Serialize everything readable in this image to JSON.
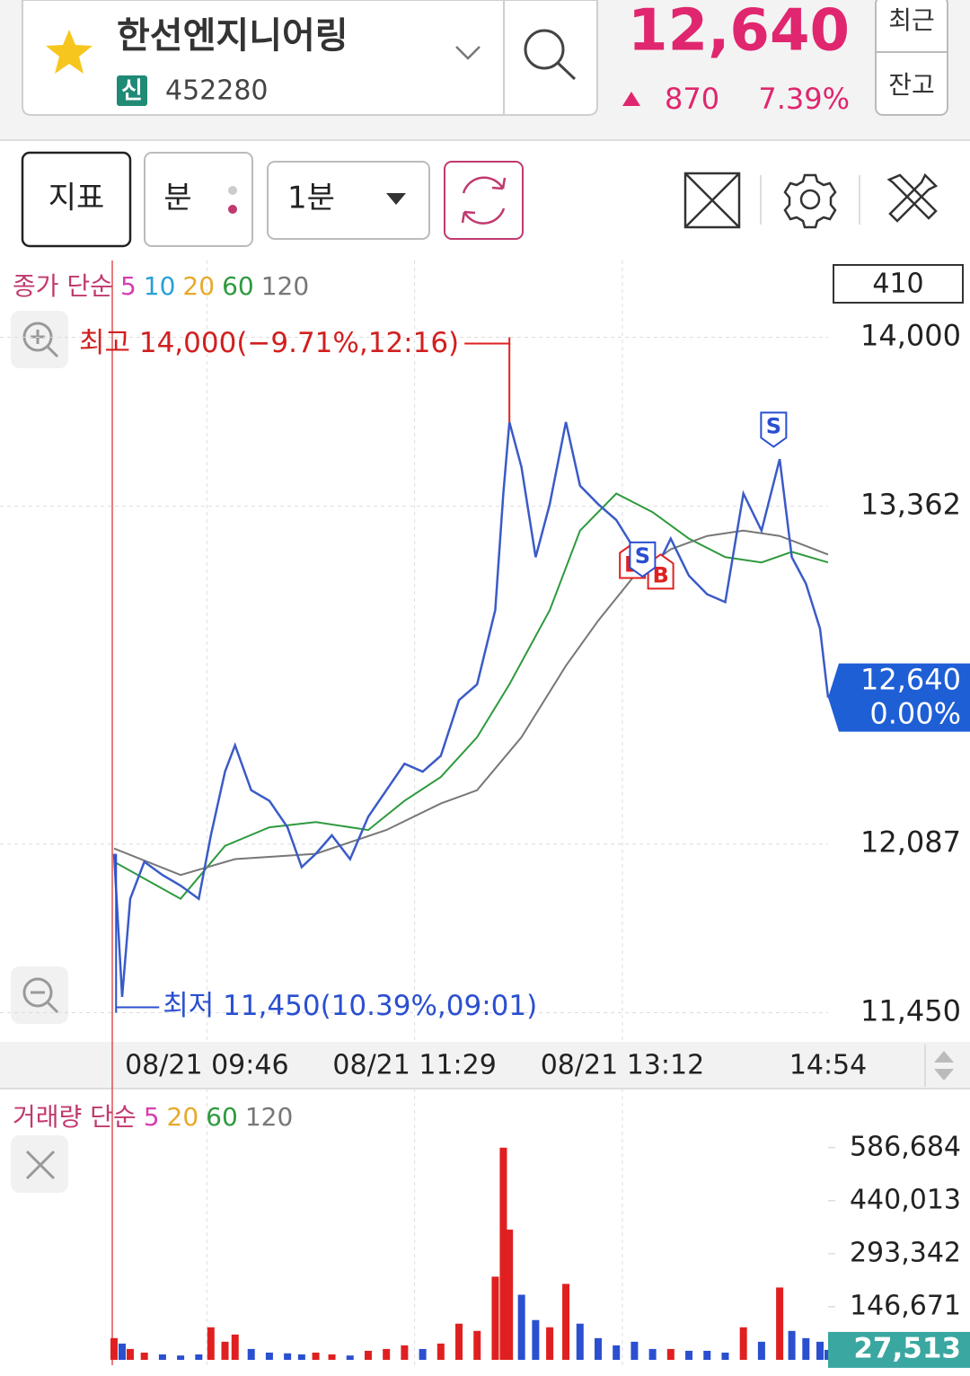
{
  "header": {
    "stock_name": "한선엔지니어링",
    "badge": "신",
    "code": "452280",
    "price": "12,640",
    "change": "870",
    "change_pct": "7.39%",
    "recent": "최근",
    "balance": "잔고"
  },
  "toolbar": {
    "indicator": "지표",
    "period_unit": "분",
    "interval": "1분"
  },
  "chart_data": [
    {
      "type": "line",
      "legend_title": "종가 단순",
      "count_box": "410",
      "x": [
        "09:00",
        "09:04",
        "09:08",
        "09:15",
        "09:24",
        "09:33",
        "09:42",
        "09:48",
        "09:55",
        "10:00",
        "10:08",
        "10:17",
        "10:26",
        "10:33",
        "10:40",
        "10:48",
        "10:57",
        "11:06",
        "11:15",
        "11:24",
        "11:33",
        "11:42",
        "11:51",
        "12:00",
        "12:09",
        "12:13",
        "12:16",
        "12:22",
        "12:29",
        "12:36",
        "12:44",
        "12:51",
        "13:00",
        "13:09",
        "13:18",
        "13:27",
        "13:36",
        "13:45",
        "13:54",
        "14:03",
        "14:12",
        "14:21",
        "14:30",
        "14:36",
        "14:43",
        "14:50",
        "14:54"
      ],
      "values": [
        12050,
        11510,
        11880,
        12020,
        11970,
        11930,
        11880,
        12120,
        12360,
        12460,
        12290,
        12250,
        12150,
        12000,
        12050,
        12120,
        12030,
        12190,
        12290,
        12390,
        12360,
        12420,
        12630,
        12690,
        12970,
        13410,
        13680,
        13510,
        13170,
        13370,
        13680,
        13440,
        13370,
        13310,
        13200,
        13100,
        13240,
        13100,
        13030,
        13000,
        13410,
        13270,
        13540,
        13170,
        13070,
        12900,
        12640
      ],
      "color": "#3a5bc7",
      "series": [
        {
          "name": "5",
          "color": "#d63fb0"
        },
        {
          "name": "10",
          "color": "#2aa0d8"
        },
        {
          "name": "20",
          "color": "#e8a92a"
        },
        {
          "name": "60",
          "color": "#2e9a3e",
          "x": [
            "09:00",
            "09:33",
            "09:55",
            "10:17",
            "10:40",
            "11:06",
            "11:24",
            "11:42",
            "12:00",
            "12:16",
            "12:36",
            "12:51",
            "13:09",
            "13:27",
            "13:45",
            "14:03",
            "14:21",
            "14:36",
            "14:54"
          ],
          "values": [
            12020,
            11880,
            12080,
            12150,
            12170,
            12140,
            12250,
            12340,
            12490,
            12690,
            12970,
            13270,
            13410,
            13340,
            13240,
            13170,
            13150,
            13190,
            13150
          ]
        },
        {
          "name": "120",
          "color": "#777777",
          "x": [
            "09:00",
            "09:33",
            "10:00",
            "10:40",
            "11:15",
            "11:42",
            "12:00",
            "12:22",
            "12:44",
            "13:00",
            "13:18",
            "13:36",
            "13:54",
            "14:12",
            "14:30",
            "14:54"
          ],
          "values": [
            12070,
            11970,
            12030,
            12050,
            12140,
            12240,
            12290,
            12490,
            12760,
            12930,
            13100,
            13200,
            13250,
            13270,
            13250,
            13180
          ]
        }
      ],
      "ylim": [
        11340,
        14290
      ],
      "yticks": [
        {
          "value": 14000,
          "label": "14,000"
        },
        {
          "value": 13362,
          "label": "13,362"
        },
        {
          "value": 12087,
          "label": "12,087"
        },
        {
          "value": 11450,
          "label": "11,450"
        }
      ],
      "xlim": [
        "09:00",
        "14:54"
      ],
      "xticks": [
        {
          "value": "09:46",
          "label": "08/21 09:46"
        },
        {
          "value": "11:29",
          "label": "08/21 11:29"
        },
        {
          "value": "13:12",
          "label": "08/21 13:12"
        },
        "14:54"
      ],
      "grid": true,
      "high": {
        "label": "최고 14,000(−9.71%,12:16)",
        "value": 14000,
        "x": "12:16"
      },
      "low": {
        "label": "최저 11,450(10.39%,09:01)",
        "value": 11450,
        "x": "09:01"
      },
      "current": {
        "value": 12640,
        "label": "12,640",
        "change": "0.00%"
      },
      "trade_marks": [
        {
          "label": "S",
          "x": "14:27",
          "value": 13580
        },
        {
          "label": "B",
          "x": "13:17",
          "value": 13220
        },
        {
          "label": "B",
          "x": "13:31",
          "value": 13180
        },
        {
          "label": "S",
          "x": "13:22",
          "value": 13090
        }
      ]
    },
    {
      "type": "bar",
      "legend_title": "거래량 단순",
      "series": [
        {
          "name": "5",
          "color": "#d63fb0"
        },
        {
          "name": "20",
          "color": "#e8a92a"
        },
        {
          "name": "60",
          "color": "#2e9a3e"
        },
        {
          "name": "120",
          "color": "#777777"
        }
      ],
      "values": [
        60000,
        45000,
        30000,
        20000,
        15000,
        12000,
        15000,
        90000,
        50000,
        70000,
        30000,
        20000,
        18000,
        15000,
        20000,
        15000,
        12000,
        25000,
        30000,
        40000,
        30000,
        45000,
        100000,
        80000,
        230000,
        586684,
        360000,
        180000,
        110000,
        90000,
        210000,
        100000,
        60000,
        40000,
        50000,
        30000,
        30000,
        25000,
        25000,
        20000,
        90000,
        50000,
        200000,
        80000,
        60000,
        50000,
        27513
      ],
      "ylim": [
        0,
        750000
      ],
      "yticks": [
        {
          "value": 586684,
          "label": "586,684"
        },
        {
          "value": 440013,
          "label": "440,013"
        },
        {
          "value": 293342,
          "label": "293,342"
        },
        {
          "value": 146671,
          "label": "146,671"
        }
      ],
      "current": {
        "value": 27513,
        "label": "27,513"
      },
      "up_color": "#e02020",
      "down_color": "#2a4fd0"
    }
  ]
}
